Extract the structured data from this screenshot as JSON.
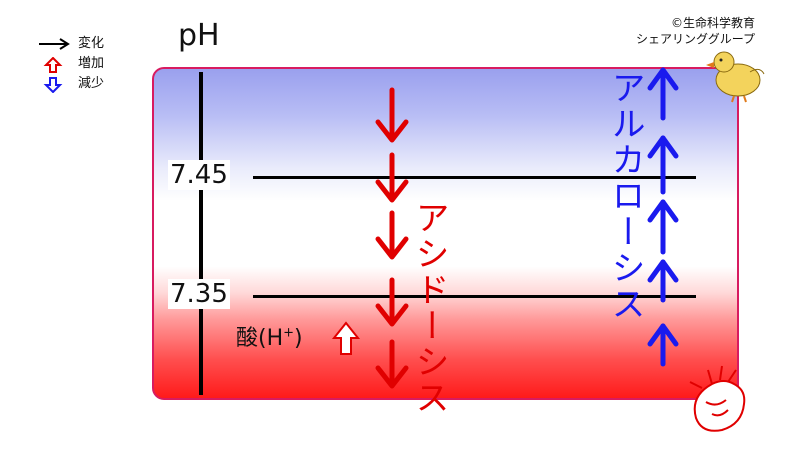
{
  "legend": {
    "items": [
      {
        "label": "変化",
        "icon": "black-arrow-right-icon"
      },
      {
        "label": "増加",
        "icon": "red-outline-arrow-up-icon"
      },
      {
        "label": "減少",
        "icon": "blue-outline-arrow-down-icon"
      }
    ]
  },
  "copyright": {
    "line1": "©生命科学教育",
    "line2": "シェアリンググループ"
  },
  "diagram": {
    "axis_title": "pH",
    "tick_upper": "7.45",
    "tick_lower": "7.35",
    "acid_label_prefix": "酸(H",
    "acid_label_sup": "+",
    "acid_label_suffix": ")",
    "acidosis_label": "アシドーシス",
    "alkalosis_label": "アルカローシス",
    "colors": {
      "acidosis": "#e00000",
      "alkalosis": "#1a1aee",
      "panel_border": "#d81b60",
      "top_gradient": "#9aa0ee",
      "bottom_gradient": "#ff1a1a"
    },
    "icons": [
      "chick-icon",
      "heart-icon"
    ]
  }
}
